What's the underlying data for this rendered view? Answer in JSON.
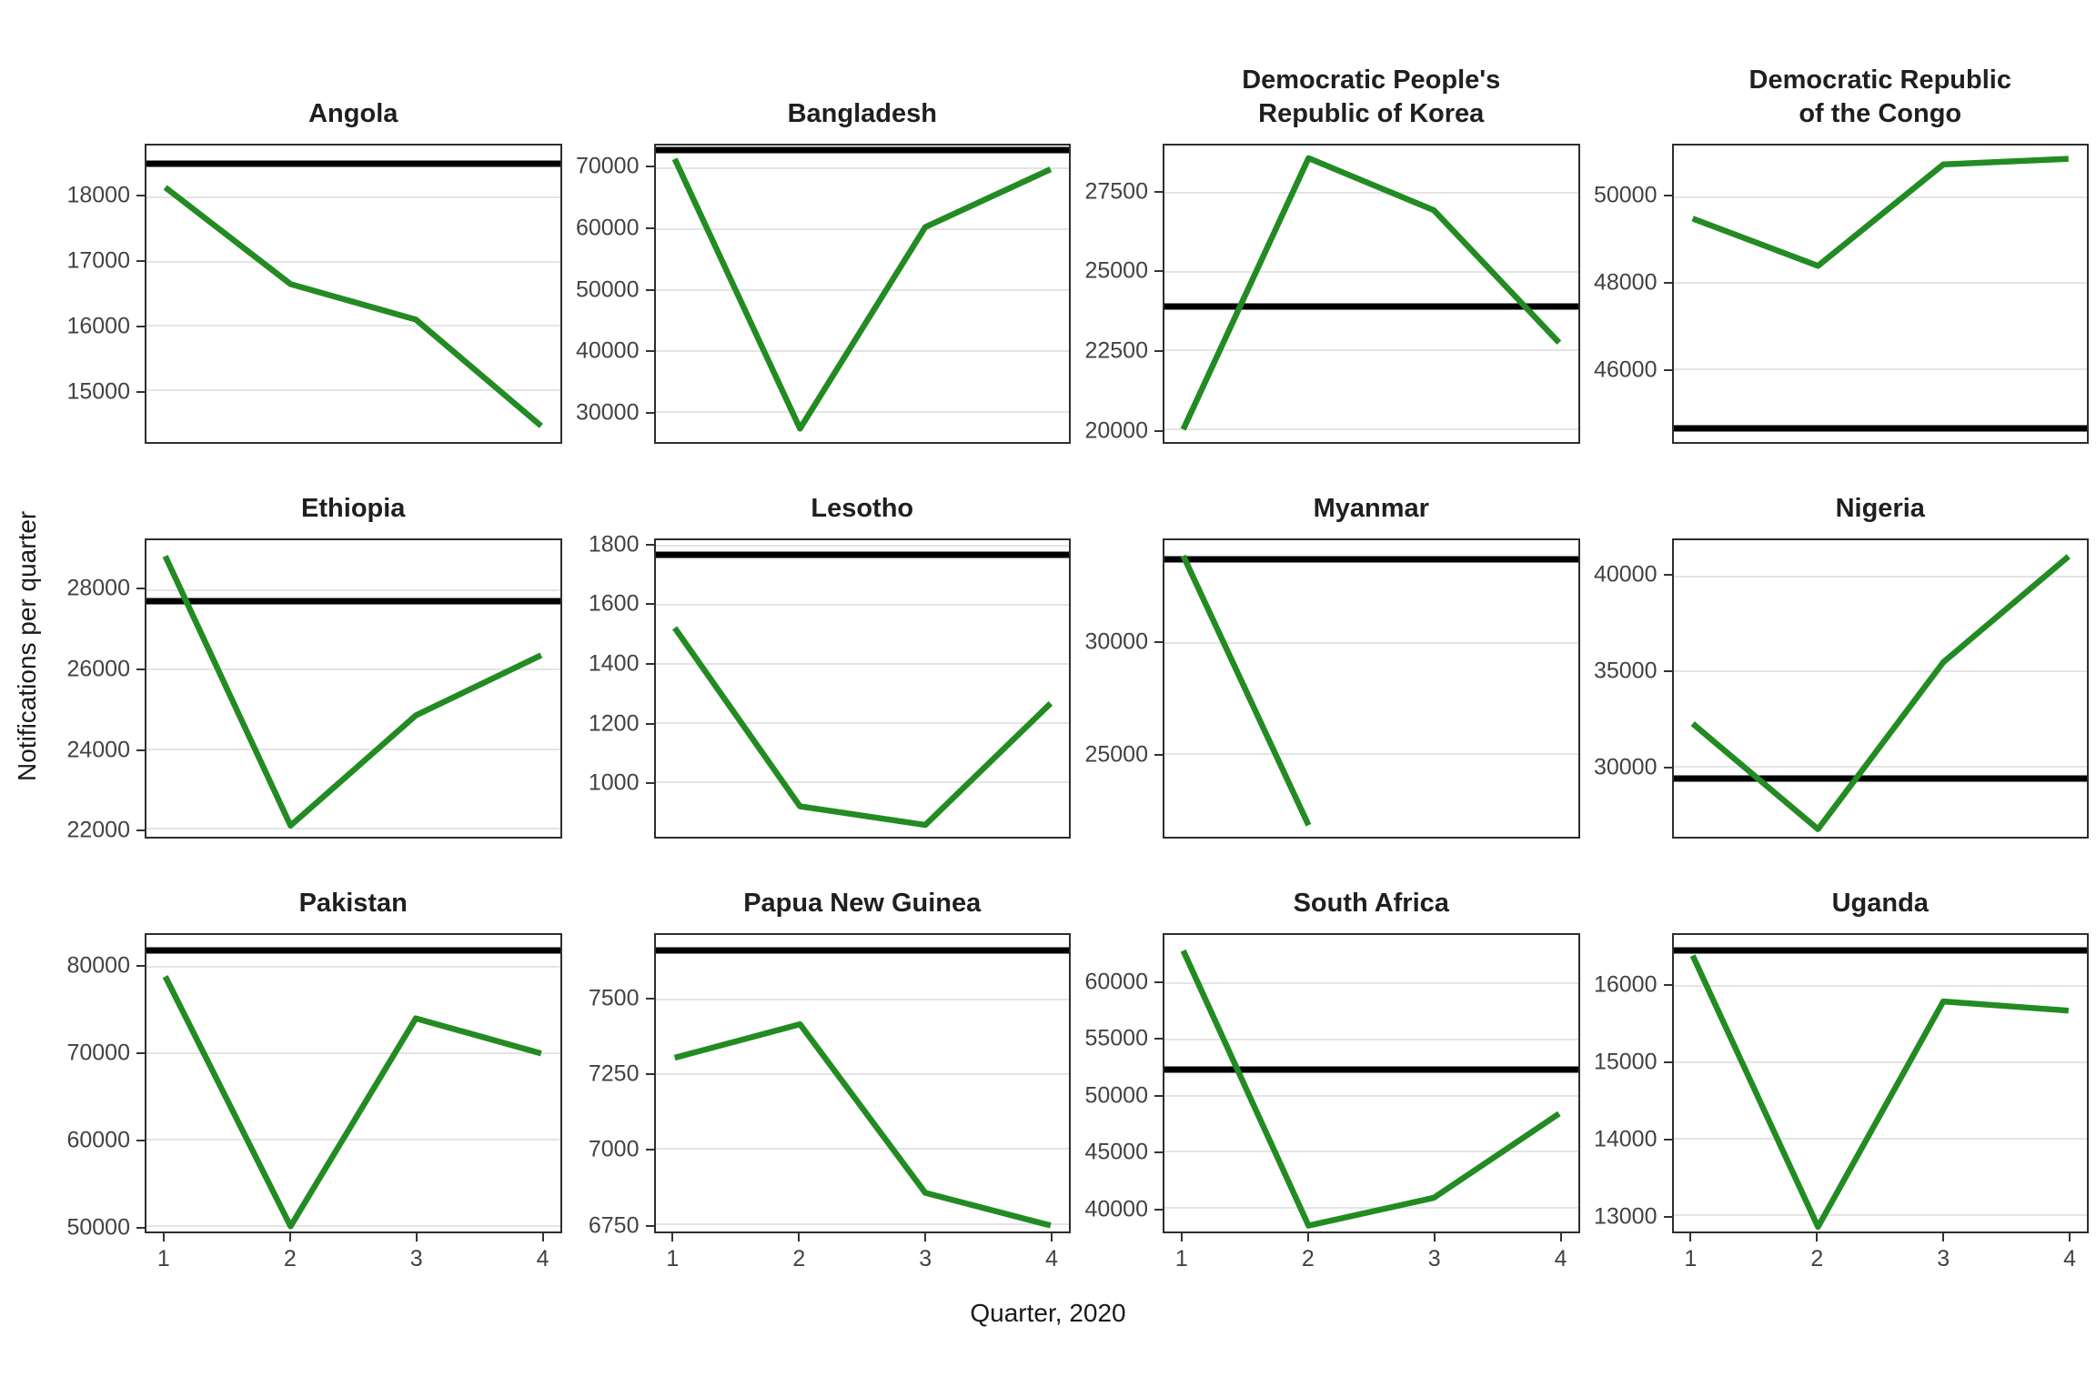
{
  "figure": {
    "y_axis_label": "Notifications per quarter",
    "x_axis_label": "Quarter, 2020",
    "x_tick_labels": [
      "1",
      "2",
      "3",
      "4"
    ],
    "line_color": "#228B22",
    "reference_line_color": "#000000",
    "gridline_color": "#e4e4e4",
    "panel_border_color": "#2e2e2e"
  },
  "chart_data": [
    {
      "id": "angola",
      "type": "line",
      "title": "Angola",
      "title_lines": [
        "Angola"
      ],
      "x": [
        1,
        2,
        3,
        4
      ],
      "values": [
        18150,
        16650,
        16100,
        14450
      ],
      "reference_line": 18520,
      "yticks": [
        15000,
        16000,
        17000,
        18000
      ],
      "ylim": [
        14200,
        18800
      ]
    },
    {
      "id": "bangladesh",
      "type": "line",
      "title": "Bangladesh",
      "title_lines": [
        "Bangladesh"
      ],
      "x": [
        1,
        2,
        3,
        4
      ],
      "values": [
        71500,
        27200,
        60300,
        69800
      ],
      "reference_line": 72900,
      "yticks": [
        30000,
        40000,
        50000,
        60000,
        70000
      ],
      "ylim": [
        25000,
        73700
      ]
    },
    {
      "id": "dpr-korea",
      "type": "line",
      "title": "Democratic People's Republic of Korea",
      "title_lines": [
        "Democratic People's",
        "Republic of Korea"
      ],
      "x": [
        1,
        2,
        3,
        4
      ],
      "values": [
        20000,
        28600,
        26950,
        22750
      ],
      "reference_line": 23900,
      "yticks": [
        20000,
        22500,
        25000,
        27500
      ],
      "ylim": [
        19600,
        29000
      ]
    },
    {
      "id": "dr-congo",
      "type": "line",
      "title": "Democratic Republic of the Congo",
      "title_lines": [
        "Democratic Republic",
        "of the Congo"
      ],
      "x": [
        1,
        2,
        3,
        4
      ],
      "values": [
        49500,
        48400,
        50760,
        50890
      ],
      "reference_line": 44620,
      "yticks": [
        46000,
        48000,
        50000
      ],
      "ylim": [
        44300,
        51200
      ]
    },
    {
      "id": "ethiopia",
      "type": "line",
      "title": "Ethiopia",
      "title_lines": [
        "Ethiopia"
      ],
      "x": [
        1,
        2,
        3,
        4
      ],
      "values": [
        28850,
        22080,
        24850,
        26360
      ],
      "reference_line": 27730,
      "yticks": [
        22000,
        24000,
        26000,
        28000
      ],
      "ylim": [
        21800,
        29250
      ]
    },
    {
      "id": "lesotho",
      "type": "line",
      "title": "Lesotho",
      "title_lines": [
        "Lesotho"
      ],
      "x": [
        1,
        2,
        3,
        4
      ],
      "values": [
        1523,
        918,
        855,
        1267
      ],
      "reference_line": 1770,
      "yticks": [
        1000,
        1200,
        1400,
        1600,
        1800
      ],
      "ylim": [
        815,
        1820
      ]
    },
    {
      "id": "myanmar",
      "type": "line",
      "title": "Myanmar",
      "title_lines": [
        "Myanmar"
      ],
      "x": [
        1,
        2,
        3,
        4
      ],
      "values": [
        33900,
        21820,
        null,
        null
      ],
      "reference_line": 33740,
      "yticks": [
        25000,
        30000
      ],
      "ylim": [
        21300,
        34600
      ]
    },
    {
      "id": "nigeria",
      "type": "line",
      "title": "Nigeria",
      "title_lines": [
        "Nigeria"
      ],
      "x": [
        1,
        2,
        3,
        4
      ],
      "values": [
        32250,
        26700,
        35480,
        41050
      ],
      "reference_line": 29370,
      "yticks": [
        30000,
        35000,
        40000
      ],
      "ylim": [
        26300,
        41900
      ]
    },
    {
      "id": "pakistan",
      "type": "line",
      "title": "Pakistan",
      "title_lines": [
        "Pakistan"
      ],
      "x": [
        1,
        2,
        3,
        4
      ],
      "values": [
        78900,
        50000,
        74050,
        70000
      ],
      "reference_line": 81870,
      "yticks": [
        50000,
        60000,
        70000,
        80000
      ],
      "ylim": [
        49400,
        83700
      ]
    },
    {
      "id": "papua-new-guinea",
      "type": "line",
      "title": "Papua New Guinea",
      "title_lines": [
        "Papua New Guinea"
      ],
      "x": [
        1,
        2,
        3,
        4
      ],
      "values": [
        7305,
        7417,
        6854,
        6745
      ],
      "reference_line": 7663,
      "yticks": [
        6750,
        7000,
        7250,
        7500
      ],
      "ylim": [
        6725,
        7715
      ]
    },
    {
      "id": "south-africa",
      "type": "line",
      "title": "South Africa",
      "title_lines": [
        "South Africa"
      ],
      "x": [
        1,
        2,
        3,
        4
      ],
      "values": [
        62900,
        38420,
        40900,
        48390
      ],
      "reference_line": 52330,
      "yticks": [
        40000,
        45000,
        50000,
        55000,
        60000
      ],
      "ylim": [
        37900,
        64300
      ]
    },
    {
      "id": "uganda",
      "type": "line",
      "title": "Uganda",
      "title_lines": [
        "Uganda"
      ],
      "x": [
        1,
        2,
        3,
        4
      ],
      "values": [
        16400,
        12850,
        15800,
        15680
      ],
      "reference_line": 16470,
      "yticks": [
        13000,
        14000,
        15000,
        16000
      ],
      "ylim": [
        12790,
        16670
      ]
    }
  ]
}
